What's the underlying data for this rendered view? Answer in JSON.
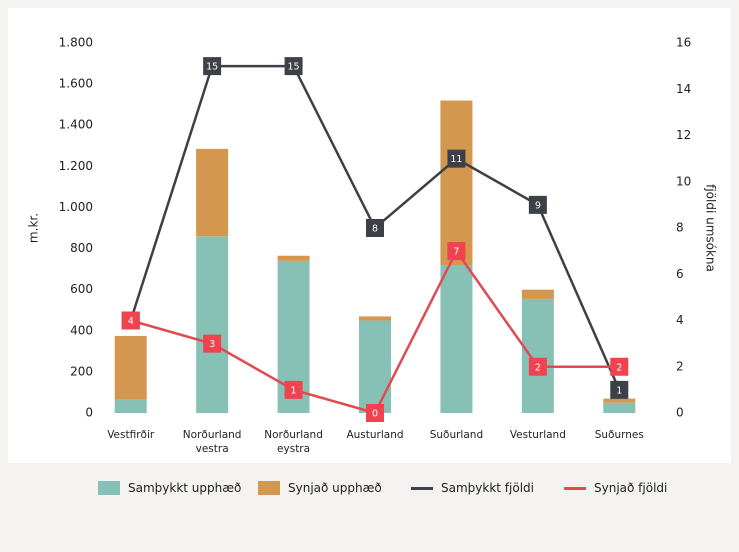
{
  "chart_data": {
    "type": "bar",
    "categories": [
      "Vestfirðir",
      "Norðurland vestra",
      "Norðurland eystra",
      "Austurland",
      "Suðurland",
      "Vesturland",
      "Suðurnes"
    ],
    "series": [
      {
        "name": "Samþykkt upphæð",
        "type": "bar",
        "color": "#87c1b5",
        "values": [
          65,
          860,
          740,
          450,
          720,
          555,
          50
        ]
      },
      {
        "name": "Synjað upphæð",
        "type": "bar",
        "color": "#d4974f",
        "values": [
          310,
          425,
          25,
          20,
          800,
          45,
          20
        ]
      },
      {
        "name": "Samþykkt fjöldi",
        "type": "line",
        "axis": "y2",
        "color": "#3d4047",
        "values": [
          4,
          15,
          15,
          8,
          11,
          9,
          1
        ]
      },
      {
        "name": "Synjað fjöldi",
        "type": "line",
        "axis": "y2",
        "color": "#e04a51",
        "values": [
          4,
          3,
          1,
          0,
          7,
          2,
          2
        ]
      }
    ],
    "ylabel": "m.kr.",
    "y2label": "fjöldi umsókna",
    "ylim": [
      0,
      1800
    ],
    "yticks": [
      0,
      200,
      400,
      600,
      800,
      {
        "value": 1000,
        "label": "1.000"
      },
      {
        "value": 1200,
        "label": "1.200"
      },
      {
        "value": 1400,
        "label": "1.400"
      },
      {
        "value": 1600,
        "label": "1.600"
      },
      {
        "value": 1800,
        "label": "1.800"
      }
    ],
    "y2lim": [
      0,
      16
    ],
    "y2ticks": [
      0,
      2,
      4,
      6,
      8,
      10,
      12,
      14,
      16
    ]
  }
}
